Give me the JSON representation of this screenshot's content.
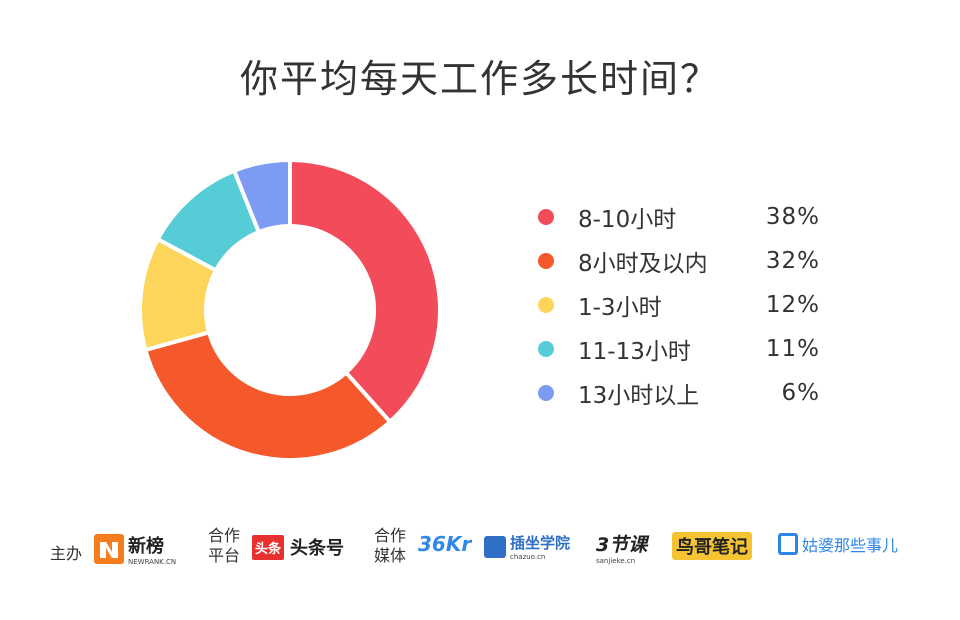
{
  "chart_data": {
    "type": "pie",
    "title": "你平均每天工作多长时间？",
    "donut": true,
    "categories": [
      "8-10小时",
      "8小时及以内",
      "1-3小时",
      "11-13小时",
      "13小时以上"
    ],
    "values": [
      38,
      32,
      12,
      11,
      6
    ],
    "value_labels": [
      "38%",
      "32%",
      "12%",
      "11%",
      "6%"
    ],
    "colors": [
      "#f24b5a",
      "#f5582b",
      "#fcd55a",
      "#56ccd6",
      "#7b9cf2"
    ],
    "legend_position": "right"
  },
  "footer": {
    "organizer_label": "主办",
    "organizer_logo": "新榜",
    "organizer_logo_sub": "NEWRANK.CN",
    "platform_label_1": "合作",
    "platform_label_2": "平台",
    "platform_logo_badge": "头条",
    "platform_logo": "头条号",
    "media_label_1": "合作",
    "media_label_2": "媒体",
    "media_logos": [
      "36Kr",
      "插坐学院",
      "3节课",
      "鸟哥笔记",
      "姑婆那些事儿"
    ],
    "media_logo_sub_chazuo": "chazuo.cn",
    "media_logo_sub_3jieke": "sanjieke.cn"
  }
}
